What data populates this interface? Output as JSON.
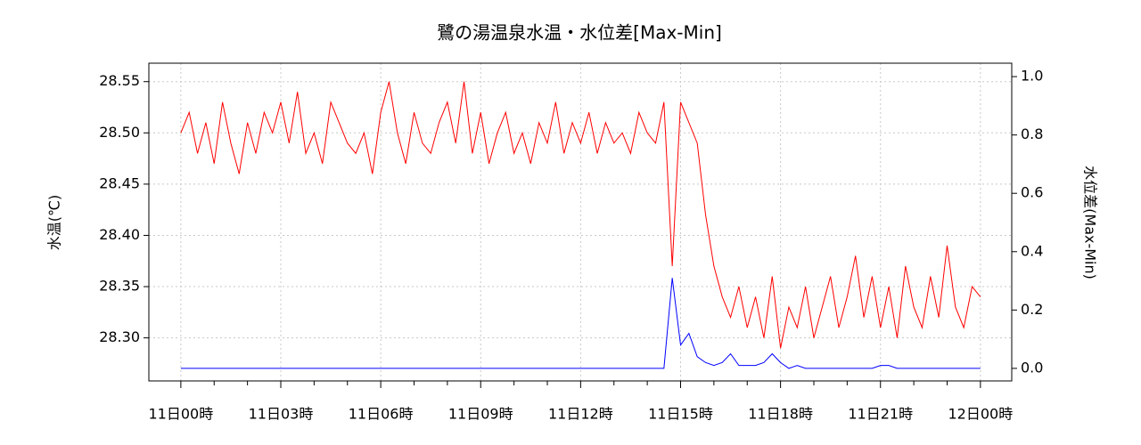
{
  "chart_data": {
    "type": "line",
    "title": "鷺の湯温泉水温・水位差[Max-Min]",
    "ylabel": "水温(℃)",
    "y2label": "水位差(Max-Min)",
    "x": [
      0,
      0.25,
      0.5,
      0.75,
      1,
      1.25,
      1.5,
      1.75,
      2,
      2.25,
      2.5,
      2.75,
      3,
      3.25,
      3.5,
      3.75,
      4,
      4.25,
      4.5,
      4.75,
      5,
      5.25,
      5.5,
      5.75,
      6,
      6.25,
      6.5,
      6.75,
      7,
      7.25,
      7.5,
      7.75,
      8,
      8.25,
      8.5,
      8.75,
      9,
      9.25,
      9.5,
      9.75,
      10,
      10.25,
      10.5,
      10.75,
      11,
      11.25,
      11.5,
      11.75,
      12,
      12.25,
      12.5,
      12.75,
      13,
      13.25,
      13.5,
      13.75,
      14,
      14.25,
      14.5,
      14.75,
      15,
      15.25,
      15.5,
      15.75,
      16,
      16.25,
      16.5,
      16.75,
      17,
      17.25,
      17.5,
      17.75,
      18,
      18.25,
      18.5,
      18.75,
      19,
      19.25,
      19.5,
      19.75,
      20,
      20.25,
      20.5,
      20.75,
      21,
      21.25,
      21.5,
      21.75,
      22,
      22.25,
      22.5,
      22.75,
      23,
      23.25,
      23.5,
      23.75,
      24
    ],
    "series": [
      {
        "name": "水温",
        "color": "#ff0000",
        "axis": "y",
        "values": [
          28.5,
          28.52,
          28.48,
          28.51,
          28.47,
          28.53,
          28.49,
          28.46,
          28.51,
          28.48,
          28.52,
          28.5,
          28.53,
          28.49,
          28.54,
          28.48,
          28.5,
          28.47,
          28.53,
          28.51,
          28.49,
          28.48,
          28.5,
          28.46,
          28.52,
          28.55,
          28.5,
          28.47,
          28.52,
          28.49,
          28.48,
          28.51,
          28.53,
          28.49,
          28.55,
          28.48,
          28.52,
          28.47,
          28.5,
          28.52,
          28.48,
          28.5,
          28.47,
          28.51,
          28.49,
          28.53,
          28.48,
          28.51,
          28.49,
          28.52,
          28.48,
          28.51,
          28.49,
          28.5,
          28.48,
          28.52,
          28.5,
          28.49,
          28.53,
          28.37,
          28.53,
          28.51,
          28.49,
          28.42,
          28.37,
          28.34,
          28.32,
          28.35,
          28.31,
          28.34,
          28.3,
          28.36,
          28.29,
          28.33,
          28.31,
          28.35,
          28.3,
          28.33,
          28.36,
          28.31,
          28.34,
          28.38,
          28.32,
          28.36,
          28.31,
          28.35,
          28.3,
          28.37,
          28.33,
          28.31,
          28.36,
          28.32,
          28.39,
          28.33,
          28.31,
          28.35,
          28.34
        ]
      },
      {
        "name": "水位差",
        "color": "#0000ff",
        "axis": "y2",
        "values": [
          0,
          0,
          0,
          0,
          0,
          0,
          0,
          0,
          0,
          0,
          0,
          0,
          0,
          0,
          0,
          0,
          0,
          0,
          0,
          0,
          0,
          0,
          0,
          0,
          0,
          0,
          0,
          0,
          0,
          0,
          0,
          0,
          0,
          0,
          0,
          0,
          0,
          0,
          0,
          0,
          0,
          0,
          0,
          0,
          0,
          0,
          0,
          0,
          0,
          0,
          0,
          0,
          0,
          0,
          0,
          0,
          0,
          0,
          0,
          0.31,
          0.08,
          0.12,
          0.04,
          0.02,
          0.01,
          0.02,
          0.05,
          0.01,
          0.01,
          0.01,
          0.02,
          0.05,
          0.02,
          0,
          0.01,
          0,
          0,
          0,
          0,
          0,
          0,
          0,
          0,
          0,
          0.01,
          0.01,
          0,
          0,
          0,
          0,
          0,
          0,
          0,
          0,
          0,
          0,
          0
        ]
      }
    ],
    "xlim": [
      -0.96,
      24.94
    ],
    "xticks": [
      {
        "value": 0,
        "label": "11日00時"
      },
      {
        "value": 3,
        "label": "11日03時"
      },
      {
        "value": 6,
        "label": "11日06時"
      },
      {
        "value": 9,
        "label": "11日09時"
      },
      {
        "value": 12,
        "label": "11日12時"
      },
      {
        "value": 15,
        "label": "11日15時"
      },
      {
        "value": 18,
        "label": "11日18時"
      },
      {
        "value": 21,
        "label": "11日21時"
      },
      {
        "value": 24,
        "label": "12日00時"
      }
    ],
    "ylim": [
      28.258,
      28.568
    ],
    "yticks": [
      {
        "value": 28.3,
        "label": "28.30"
      },
      28.35,
      {
        "value": 28.4,
        "label": "28.40"
      },
      28.45,
      {
        "value": 28.5,
        "label": "28.50"
      },
      28.55
    ],
    "y2lim": [
      -0.043,
      1.046
    ],
    "y2ticks": [
      {
        "value": 0,
        "label": "0.0"
      },
      0.2,
      0.4,
      0.6,
      0.8,
      {
        "value": 1,
        "label": "1.0"
      }
    ],
    "grid": true
  }
}
